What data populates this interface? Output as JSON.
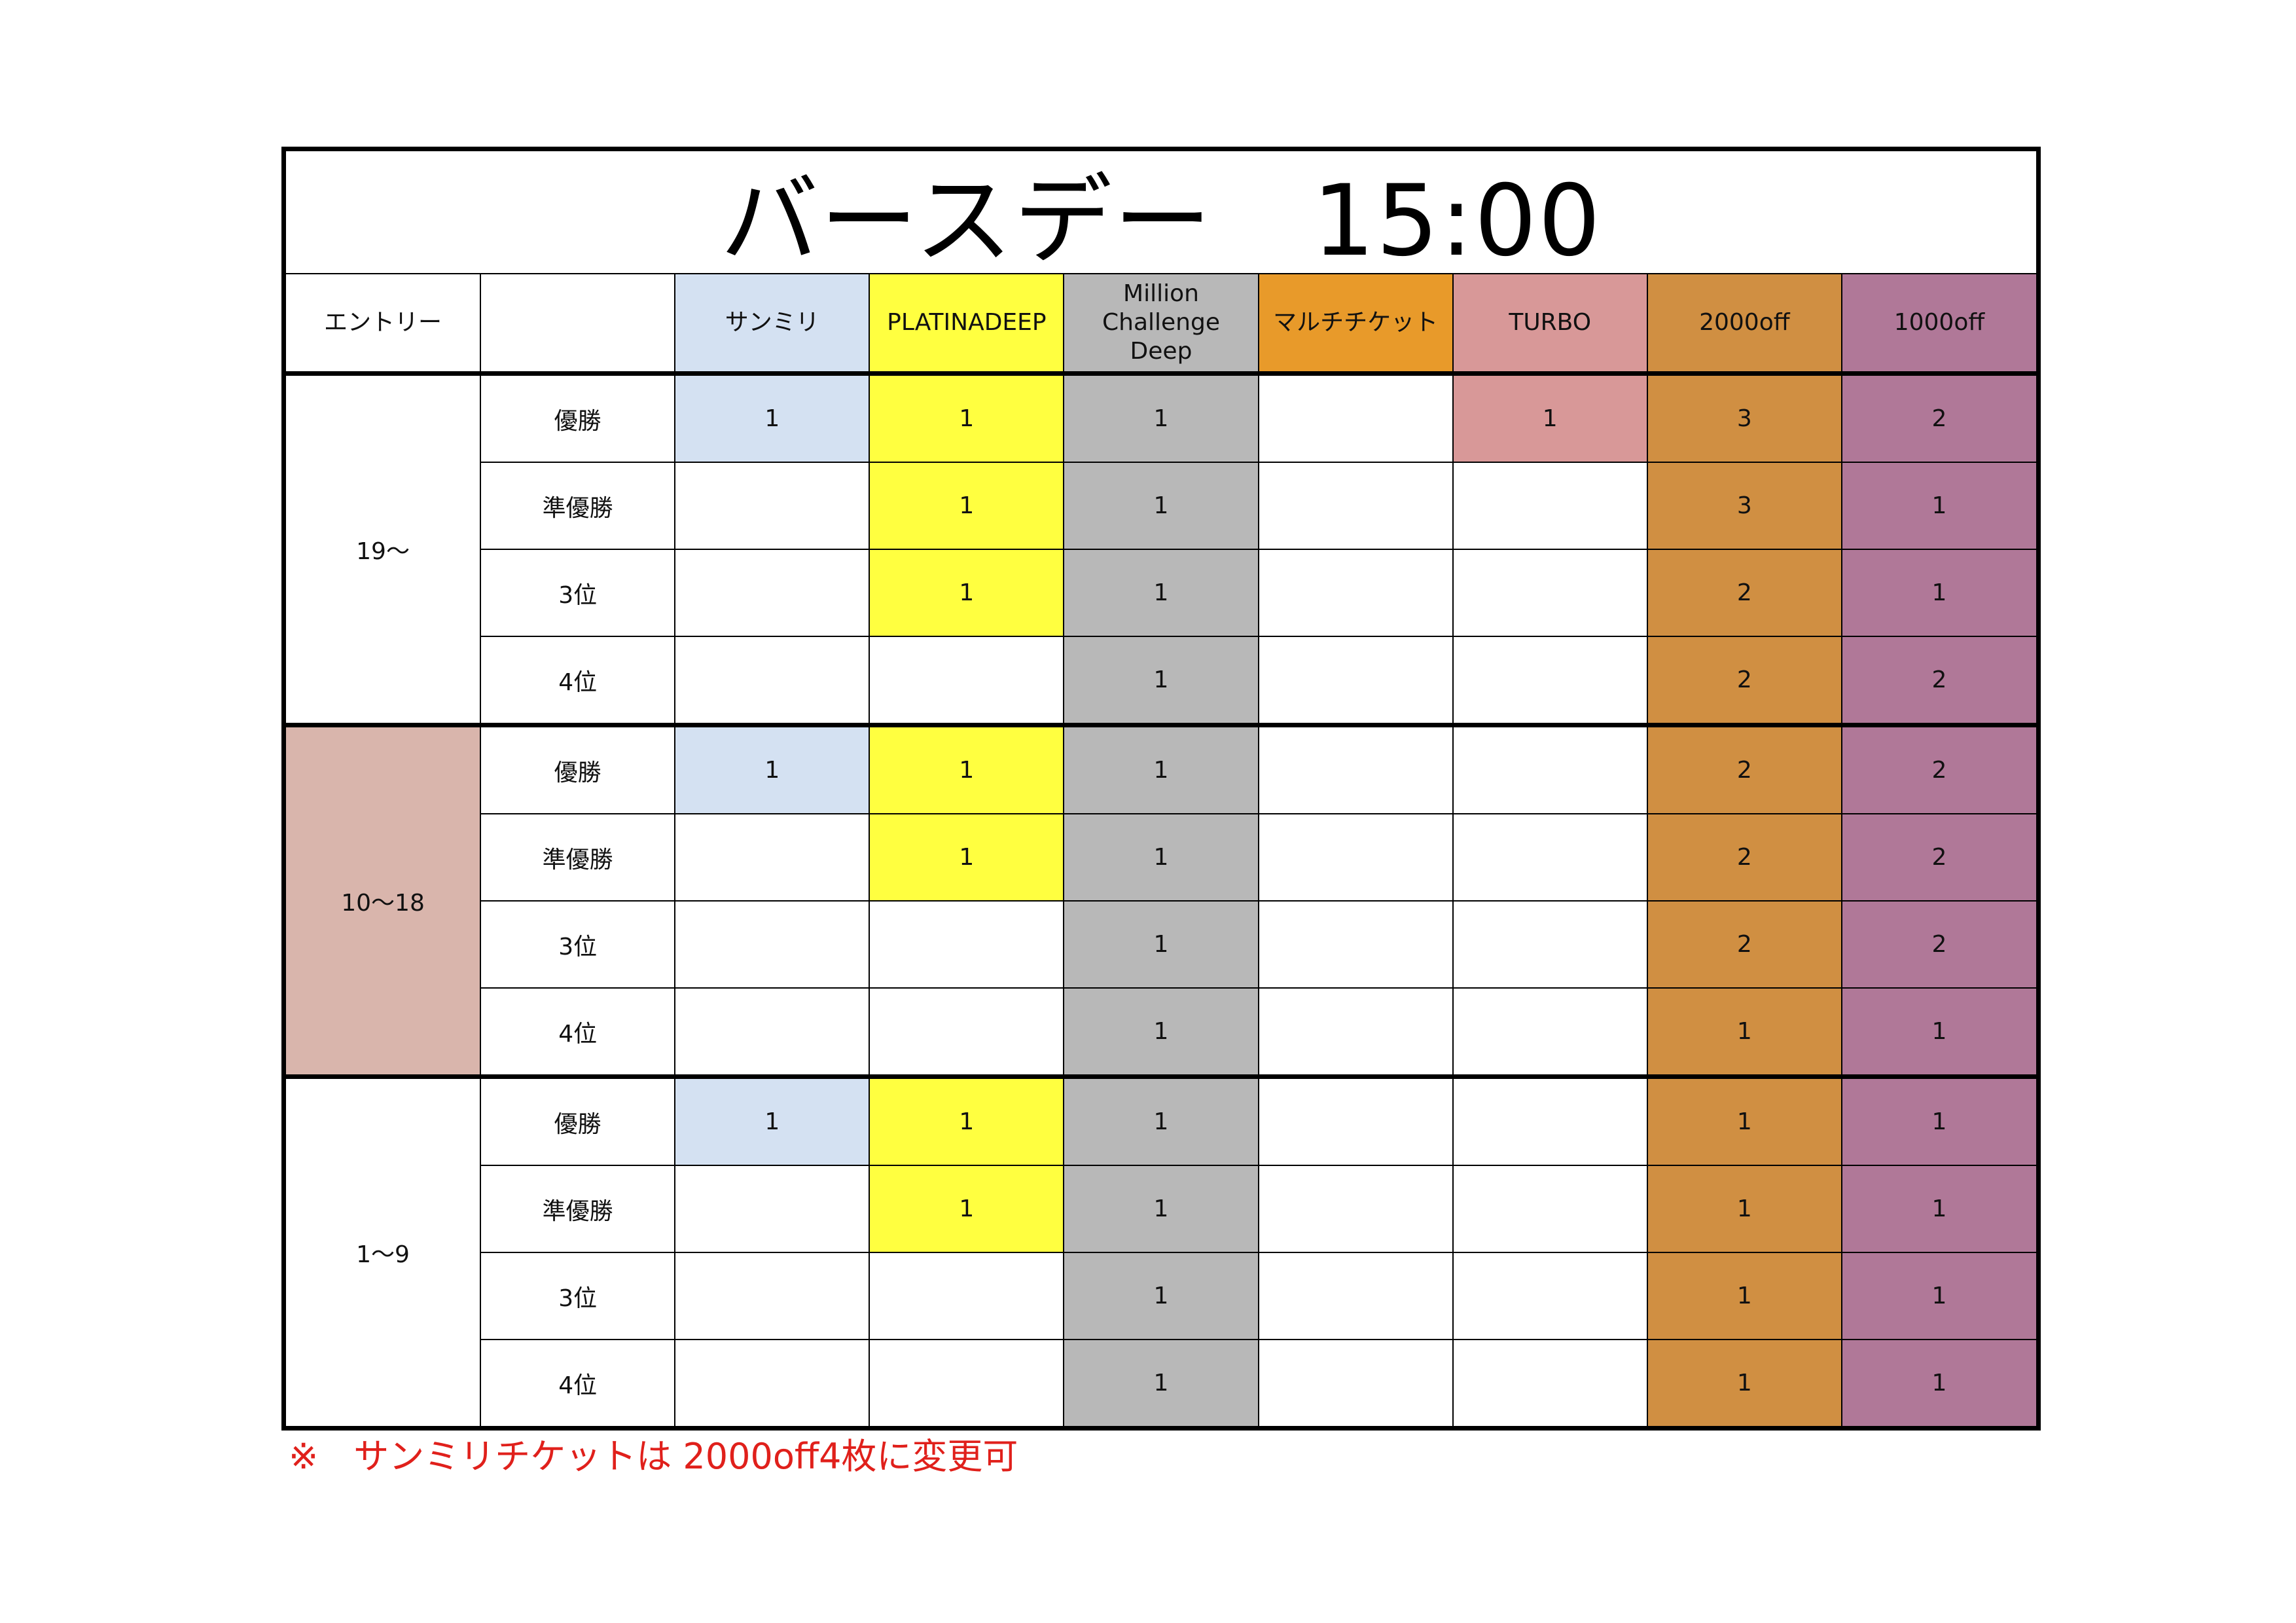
{
  "title": "バースデー　15:00",
  "header": {
    "entry_label": "エントリー",
    "rank_label": "",
    "columns": [
      {
        "label": "サンミリ",
        "color": "#d4e1f2"
      },
      {
        "label": "PLATINADEEP",
        "color": "#ffff40"
      },
      {
        "label": "Million\nChallenge\nDeep",
        "color": "#b8b8b8"
      },
      {
        "label": "マルチチケット",
        "color": "#e89a2a"
      },
      {
        "label": "TURBO",
        "color": "#d89898"
      },
      {
        "label": "2000off",
        "color": "#d08f42"
      },
      {
        "label": "1000off",
        "color": "#b07898"
      }
    ]
  },
  "groups": [
    {
      "entry": "19〜",
      "color": "#ffffff",
      "rows": [
        {
          "rank": "優勝",
          "values": [
            "1",
            "1",
            "1",
            "",
            "1",
            "3",
            "2"
          ]
        },
        {
          "rank": "準優勝",
          "values": [
            "",
            "1",
            "1",
            "",
            "",
            "3",
            "1"
          ]
        },
        {
          "rank": "3位",
          "values": [
            "",
            "1",
            "1",
            "",
            "",
            "2",
            "1"
          ]
        },
        {
          "rank": "4位",
          "values": [
            "",
            "",
            "1",
            "",
            "",
            "2",
            "2"
          ]
        }
      ]
    },
    {
      "entry": "10〜18",
      "color": "#d9b5ac",
      "rows": [
        {
          "rank": "優勝",
          "values": [
            "1",
            "1",
            "1",
            "",
            "",
            "2",
            "2"
          ]
        },
        {
          "rank": "準優勝",
          "values": [
            "",
            "1",
            "1",
            "",
            "",
            "2",
            "2"
          ]
        },
        {
          "rank": "3位",
          "values": [
            "",
            "",
            "1",
            "",
            "",
            "2",
            "2"
          ]
        },
        {
          "rank": "4位",
          "values": [
            "",
            "",
            "1",
            "",
            "",
            "1",
            "1"
          ]
        }
      ]
    },
    {
      "entry": "1〜9",
      "color": "#ffffff",
      "rows": [
        {
          "rank": "優勝",
          "values": [
            "1",
            "1",
            "1",
            "",
            "",
            "1",
            "1"
          ]
        },
        {
          "rank": "準優勝",
          "values": [
            "",
            "1",
            "1",
            "",
            "",
            "1",
            "1"
          ]
        },
        {
          "rank": "3位",
          "values": [
            "",
            "",
            "1",
            "",
            "",
            "1",
            "1"
          ]
        },
        {
          "rank": "4位",
          "values": [
            "",
            "",
            "1",
            "",
            "",
            "1",
            "1"
          ]
        }
      ]
    }
  ],
  "note": "※　サンミリチケットは 2000off4枚に変更可",
  "note_color": "#e0201b"
}
